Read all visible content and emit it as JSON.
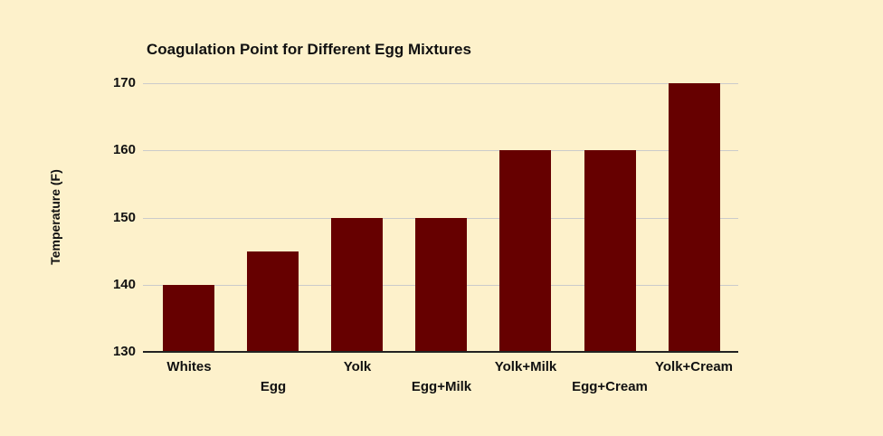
{
  "chart": {
    "title": "Coagulation Point for Different Egg Mixtures",
    "y_axis_label": "Temperature (F)",
    "colors": {
      "background": "#FDF1CB",
      "bar": "#660000",
      "gridline": "#CBCBCB",
      "axis_line": "#222222",
      "text": "#111111"
    }
  },
  "chart_data": {
    "type": "bar",
    "categories": [
      "Whites",
      "Egg",
      "Yolk",
      "Egg+Milk",
      "Yolk+Milk",
      "Egg+Cream",
      "Yolk+Cream"
    ],
    "values": [
      140,
      145,
      150,
      150,
      160,
      160,
      170
    ],
    "title": "Coagulation Point for Different Egg Mixtures",
    "xlabel": "",
    "ylabel": "Temperature (F)",
    "ylim": [
      130,
      170
    ],
    "yticks": [
      130,
      140,
      150,
      160,
      170
    ],
    "grid": true,
    "legend": false,
    "layout_hint": "x tick labels staggered on two rows; gridlines horizontal only; no legend",
    "bar_color": "#660000",
    "background_color": "#FDF1CB"
  }
}
